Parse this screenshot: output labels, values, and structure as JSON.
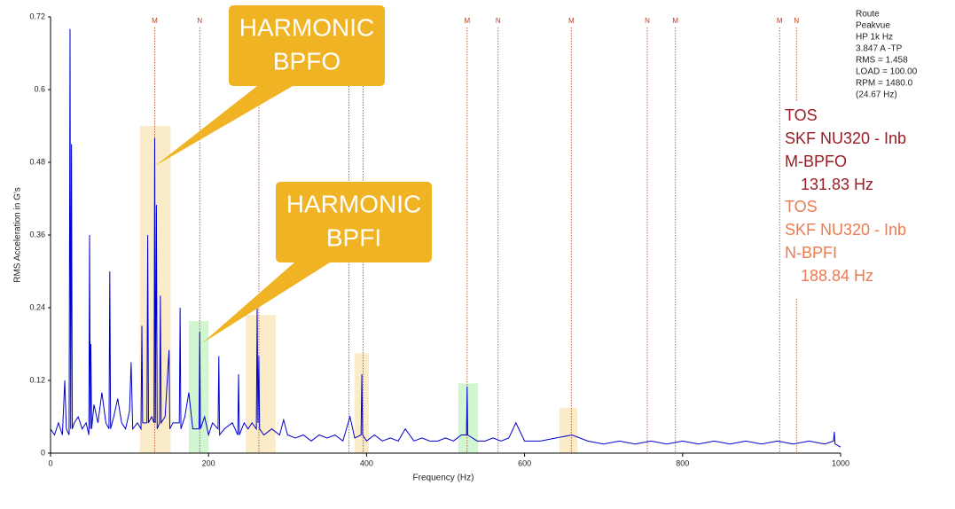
{
  "chart_data": {
    "type": "line",
    "xlabel": "Frequency (Hz)",
    "ylabel": "RMS Acceleration in G's",
    "xlim": [
      0,
      1000
    ],
    "xticks": [
      0,
      200,
      400,
      600,
      800,
      1000
    ],
    "ylim": [
      0,
      0.72
    ],
    "yticks": [
      0,
      0.12,
      0.24,
      0.36,
      0.48,
      0.6,
      0.72
    ],
    "series": [
      {
        "color": "#0000cc",
        "x": [
          0,
          5,
          10,
          15,
          18,
          20,
          23.5,
          24.67,
          25.5,
          26.5,
          27.5,
          30,
          35,
          40,
          45,
          48.5,
          49.4,
          50.3,
          51,
          52,
          55,
          60,
          65,
          70,
          74,
          75,
          76,
          80,
          85,
          90,
          95,
          100,
          102,
          104,
          110,
          114.5,
          115.6,
          116.6,
          122,
          123,
          124,
          128,
          131,
          131.83,
          132.7,
          134,
          135,
          138,
          139,
          140,
          145,
          150,
          151,
          155,
          163,
          164,
          165,
          170,
          175,
          180,
          188,
          188.84,
          189.7,
          195,
          200,
          205,
          212,
          213,
          214,
          220,
          230,
          237,
          238,
          239,
          245,
          250,
          255,
          260.5,
          261.5,
          262.5,
          263.66,
          264.6,
          270,
          280,
          290,
          295,
          300,
          310,
          320,
          330,
          340,
          350,
          360,
          370,
          379,
          385,
          393,
          394,
          395,
          400,
          410,
          420,
          430,
          440,
          449,
          460,
          470,
          480,
          490,
          500,
          510,
          520,
          526.5,
          527.3,
          528,
          540,
          550,
          560,
          570,
          580,
          589,
          600,
          620,
          640,
          660,
          680,
          700,
          720,
          740,
          760,
          780,
          800,
          820,
          840,
          860,
          880,
          900,
          920,
          940,
          960,
          980,
          991,
          992,
          993,
          1000
        ],
        "values": [
          0.04,
          0.03,
          0.05,
          0.03,
          0.12,
          0.04,
          0.03,
          0.7,
          0.04,
          0.51,
          0.04,
          0.05,
          0.06,
          0.04,
          0.05,
          0.03,
          0.36,
          0.04,
          0.18,
          0.04,
          0.08,
          0.05,
          0.1,
          0.05,
          0.04,
          0.3,
          0.04,
          0.06,
          0.09,
          0.05,
          0.04,
          0.07,
          0.15,
          0.04,
          0.05,
          0.04,
          0.21,
          0.05,
          0.05,
          0.36,
          0.05,
          0.06,
          0.05,
          0.52,
          0.05,
          0.41,
          0.04,
          0.05,
          0.26,
          0.05,
          0.06,
          0.17,
          0.04,
          0.05,
          0.05,
          0.24,
          0.04,
          0.06,
          0.1,
          0.04,
          0.04,
          0.2,
          0.04,
          0.06,
          0.03,
          0.05,
          0.04,
          0.16,
          0.03,
          0.04,
          0.05,
          0.03,
          0.13,
          0.03,
          0.05,
          0.04,
          0.05,
          0.04,
          0.24,
          0.05,
          0.16,
          0.04,
          0.03,
          0.04,
          0.03,
          0.055,
          0.03,
          0.025,
          0.03,
          0.02,
          0.03,
          0.025,
          0.03,
          0.02,
          0.06,
          0.025,
          0.03,
          0.13,
          0.03,
          0.02,
          0.03,
          0.02,
          0.025,
          0.02,
          0.04,
          0.02,
          0.025,
          0.02,
          0.02,
          0.025,
          0.02,
          0.03,
          0.03,
          0.11,
          0.03,
          0.02,
          0.02,
          0.025,
          0.02,
          0.025,
          0.05,
          0.02,
          0.02,
          0.025,
          0.03,
          0.02,
          0.015,
          0.02,
          0.015,
          0.02,
          0.015,
          0.02,
          0.015,
          0.02,
          0.015,
          0.02,
          0.015,
          0.02,
          0.015,
          0.02,
          0.015,
          0.02,
          0.035,
          0.015,
          0.01
        ]
      }
    ],
    "highlights": [
      {
        "x0": 113,
        "x1": 152,
        "top": 0.54,
        "color": "#fbecc9"
      },
      {
        "x0": 247,
        "x1": 285,
        "top": 0.228,
        "color": "#fbecc9"
      },
      {
        "x0": 385,
        "x1": 403,
        "top": 0.165,
        "color": "#fbecc9"
      },
      {
        "x0": 644,
        "x1": 667,
        "top": 0.075,
        "color": "#fbecc9"
      },
      {
        "x0": 175,
        "x1": 200,
        "top": 0.218,
        "color": "#d2f5d2"
      },
      {
        "x0": 516,
        "x1": 541,
        "top": 0.115,
        "color": "#d2f5d2"
      }
    ],
    "markers": [
      {
        "x": 131.83,
        "label": "M"
      },
      {
        "x": 188.84,
        "label": "N"
      },
      {
        "x": 263.66
      },
      {
        "x": 377.68
      },
      {
        "x": 395.49
      },
      {
        "x": 527.32,
        "label": "M"
      },
      {
        "x": 566.52,
        "label": "N"
      },
      {
        "x": 659.15,
        "label": "M"
      },
      {
        "x": 755.36,
        "label": "N"
      },
      {
        "x": 790.98,
        "label": "M"
      },
      {
        "x": 922.81,
        "label": "M"
      },
      {
        "x": 944.2,
        "label": "N"
      }
    ],
    "marker_color": "#b5401f",
    "callouts": [
      {
        "lines": [
          "HARMONIC",
          "BPFO"
        ]
      },
      {
        "lines": [
          "HARMONIC",
          "BPFI"
        ]
      }
    ],
    "info": [
      "Route",
      "Peakvue",
      "HP 1k Hz",
      "3.847 A -TP",
      "RMS = 1.458",
      "LOAD = 100.00",
      "RPM = 1480.0",
      "(24.67 Hz)"
    ],
    "cursors": [
      {
        "lines": [
          "TOS",
          "SKF  NU320  - Inb",
          "M-BPFO",
          "131.83 Hz"
        ],
        "color": "#9b1c24"
      },
      {
        "lines": [
          "TOS",
          "SKF  NU320  - Inb",
          "N-BPFI",
          "188.84 Hz"
        ],
        "color": "#ee7a50"
      }
    ]
  }
}
